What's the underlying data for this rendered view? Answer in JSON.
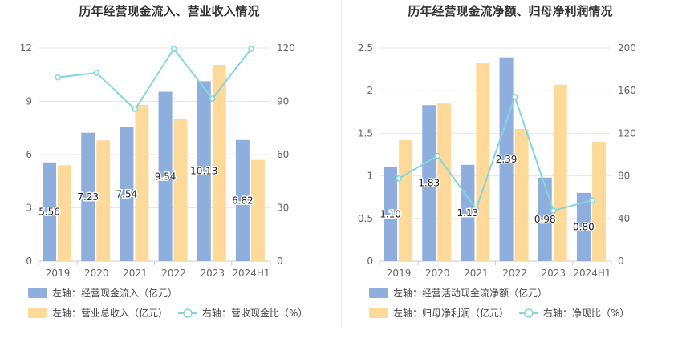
{
  "chart_data": [
    {
      "type": "bar",
      "title": "历年经营现金流入、营业收入情况",
      "categories": [
        "2019",
        "2020",
        "2021",
        "2022",
        "2023",
        "2024H1"
      ],
      "series": [
        {
          "name": "左轴：经营现金流入（亿元）",
          "axis": "left",
          "kind": "bar",
          "color": "#8eaedd",
          "values": [
            5.56,
            7.23,
            7.54,
            9.54,
            10.13,
            6.82
          ],
          "labels": [
            "5.56",
            "7.23",
            "7.54",
            "9.54",
            "10.13",
            "6.82"
          ]
        },
        {
          "name": "左轴：营业总收入（亿元）",
          "axis": "left",
          "kind": "bar",
          "color": "#fdd99a",
          "values": [
            5.4,
            6.8,
            8.8,
            8.0,
            11.05,
            5.7
          ]
        },
        {
          "name": "右轴：营收现金比（%）",
          "axis": "right",
          "kind": "line",
          "color": "#84d6dd",
          "values": [
            103.5,
            106.0,
            85.5,
            119.5,
            91.5,
            119.5
          ]
        }
      ],
      "left_axis": {
        "ylim": [
          0,
          12
        ],
        "ticks": [
          "0",
          "3",
          "6",
          "9",
          "12"
        ]
      },
      "right_axis": {
        "ylim": [
          0,
          120
        ],
        "ticks": [
          "0",
          "30",
          "60",
          "90",
          "120"
        ]
      },
      "grid": true,
      "legend_position": "bottom-left"
    },
    {
      "type": "bar",
      "title": "历年经营现金流净额、归母净利润情况",
      "categories": [
        "2019",
        "2020",
        "2021",
        "2022",
        "2023",
        "2024H1"
      ],
      "series": [
        {
          "name": "左轴：经营活动现金流净额（亿元）",
          "axis": "left",
          "kind": "bar",
          "color": "#8eaedd",
          "values": [
            1.1,
            1.83,
            1.13,
            2.39,
            0.98,
            0.8
          ],
          "labels": [
            "1.10",
            "1.83",
            "1.13",
            "2.39",
            "0.98",
            "0.80"
          ]
        },
        {
          "name": "左轴：归母净利润（亿元）",
          "axis": "left",
          "kind": "bar",
          "color": "#fdd99a",
          "values": [
            1.42,
            1.85,
            2.32,
            1.55,
            2.07,
            1.4
          ]
        },
        {
          "name": "右轴：净现比（%）",
          "axis": "right",
          "kind": "line",
          "color": "#84d6dd",
          "values": [
            77.5,
            98.9,
            48.7,
            154.2,
            47.3,
            57.1
          ]
        }
      ],
      "left_axis": {
        "ylim": [
          0,
          2.5
        ],
        "ticks": [
          "0",
          "0.5",
          "1",
          "1.5",
          "2",
          "2.5"
        ]
      },
      "right_axis": {
        "ylim": [
          0,
          200
        ],
        "ticks": [
          "0",
          "40",
          "80",
          "120",
          "160",
          "200"
        ]
      },
      "grid": true,
      "legend_position": "bottom-left"
    }
  ]
}
